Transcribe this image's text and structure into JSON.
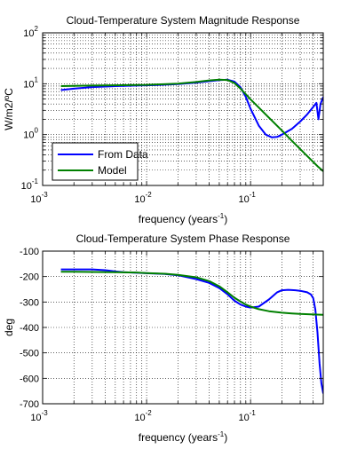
{
  "chart_data": [
    {
      "type": "line",
      "title": "Cloud-Temperature System Magnitude Response",
      "xlabel": "frequency (years",
      "xlabel_sup": "-1",
      "xlabel_close": ")",
      "ylabel": "W/m2/ºC",
      "xscale": "log",
      "yscale": "log",
      "xlim": [
        0.001,
        0.5
      ],
      "ylim": [
        0.1,
        100
      ],
      "grid": true,
      "legend": "bottom-left",
      "xticks": [
        {
          "value": 0.001,
          "base": "10",
          "exp": "-3"
        },
        {
          "value": 0.01,
          "base": "10",
          "exp": "-2"
        },
        {
          "value": 0.1,
          "base": "10",
          "exp": "-1"
        }
      ],
      "yticks": [
        {
          "value": 0.1,
          "base": "10",
          "exp": "-1"
        },
        {
          "value": 1,
          "base": "10",
          "exp": "0"
        },
        {
          "value": 10,
          "base": "10",
          "exp": "1"
        },
        {
          "value": 100,
          "base": "10",
          "exp": "2"
        }
      ],
      "series": [
        {
          "name": "From Data",
          "color": "#0000ff",
          "x": [
            0.0015,
            0.002,
            0.003,
            0.005,
            0.008,
            0.012,
            0.02,
            0.03,
            0.04,
            0.05,
            0.06,
            0.07,
            0.08,
            0.09,
            0.1,
            0.12,
            0.14,
            0.16,
            0.18,
            0.2,
            0.25,
            0.3,
            0.35,
            0.4,
            0.43,
            0.45,
            0.47,
            0.5
          ],
          "y": [
            7.5,
            8.0,
            8.6,
            9.0,
            9.2,
            9.4,
            9.8,
            10.5,
            11.2,
            11.8,
            12.0,
            11.0,
            8.5,
            5.5,
            3.2,
            1.5,
            1.0,
            0.88,
            0.9,
            1.0,
            1.3,
            1.8,
            2.5,
            3.5,
            4.2,
            2.0,
            4.0,
            5.5
          ]
        },
        {
          "name": "Model",
          "color": "#008000",
          "x": [
            0.0015,
            0.002,
            0.003,
            0.005,
            0.008,
            0.01,
            0.02,
            0.03,
            0.04,
            0.05,
            0.06,
            0.07,
            0.08,
            0.09,
            0.1,
            0.12,
            0.15,
            0.2,
            0.25,
            0.3,
            0.35,
            0.4,
            0.45,
            0.5
          ],
          "y": [
            9.0,
            9.1,
            9.2,
            9.3,
            9.45,
            9.5,
            10.0,
            10.8,
            11.6,
            12.0,
            11.8,
            10.3,
            8.0,
            6.2,
            4.9,
            3.4,
            2.15,
            1.2,
            0.75,
            0.52,
            0.38,
            0.29,
            0.23,
            0.19
          ]
        }
      ]
    },
    {
      "type": "line",
      "title": "Cloud-Temperature System Phase Response",
      "xlabel": "frequency (years",
      "xlabel_sup": "-1",
      "xlabel_close": ")",
      "ylabel": "deg",
      "xscale": "log",
      "xlim": [
        0.001,
        0.5
      ],
      "ylim": [
        -700,
        -100
      ],
      "grid": true,
      "xticks": [
        {
          "value": 0.001,
          "base": "10",
          "exp": "-3"
        },
        {
          "value": 0.01,
          "base": "10",
          "exp": "-2"
        },
        {
          "value": 0.1,
          "base": "10",
          "exp": "-1"
        }
      ],
      "yticks": [
        {
          "value": -100,
          "label": "-100"
        },
        {
          "value": -200,
          "label": "-200"
        },
        {
          "value": -300,
          "label": "-300"
        },
        {
          "value": -400,
          "label": "-400"
        },
        {
          "value": -500,
          "label": "-500"
        },
        {
          "value": -600,
          "label": "-600"
        },
        {
          "value": -700,
          "label": "-700"
        }
      ],
      "series": [
        {
          "name": "From Data",
          "color": "#0000ff",
          "x": [
            0.0015,
            0.002,
            0.003,
            0.004,
            0.005,
            0.006,
            0.008,
            0.01,
            0.015,
            0.02,
            0.03,
            0.04,
            0.05,
            0.06,
            0.07,
            0.08,
            0.09,
            0.1,
            0.12,
            0.15,
            0.18,
            0.2,
            0.23,
            0.27,
            0.3,
            0.35,
            0.38,
            0.4,
            0.42,
            0.44,
            0.46,
            0.48,
            0.5
          ],
          "y": [
            -172,
            -172,
            -172,
            -175,
            -180,
            -183,
            -185,
            -187,
            -190,
            -195,
            -210,
            -225,
            -245,
            -270,
            -295,
            -310,
            -318,
            -322,
            -318,
            -290,
            -262,
            -254,
            -252,
            -254,
            -256,
            -262,
            -270,
            -285,
            -330,
            -420,
            -540,
            -620,
            -660
          ]
        },
        {
          "name": "Model",
          "color": "#008000",
          "x": [
            0.0015,
            0.002,
            0.003,
            0.005,
            0.008,
            0.01,
            0.015,
            0.02,
            0.03,
            0.04,
            0.05,
            0.06,
            0.07,
            0.08,
            0.09,
            0.1,
            0.12,
            0.15,
            0.2,
            0.25,
            0.3,
            0.4,
            0.5
          ],
          "y": [
            -181,
            -181,
            -182,
            -183,
            -184,
            -186,
            -189,
            -193,
            -203,
            -218,
            -238,
            -262,
            -283,
            -298,
            -310,
            -318,
            -328,
            -336,
            -342,
            -345,
            -347,
            -349,
            -350
          ]
        }
      ]
    }
  ]
}
